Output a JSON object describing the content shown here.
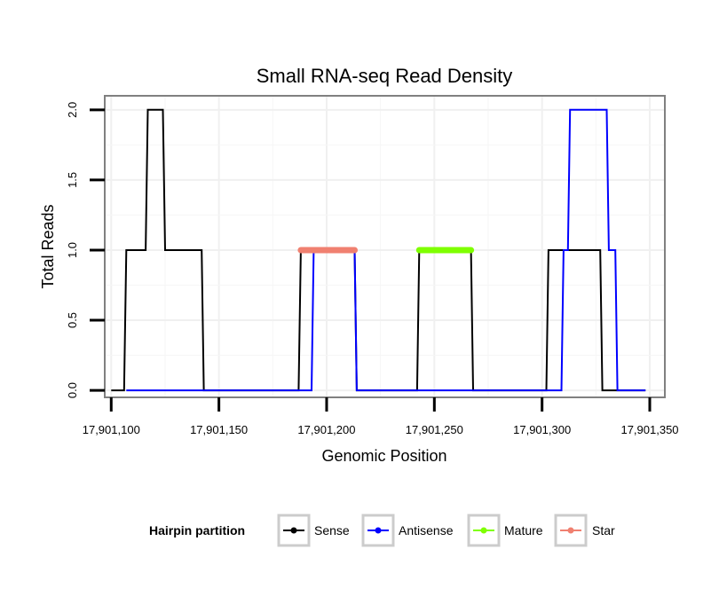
{
  "chart_data": {
    "type": "line",
    "title": "Small RNA-seq Read Density",
    "xlabel": "Genomic Position",
    "ylabel": "Total Reads",
    "xlim": [
      17901097,
      17901357
    ],
    "ylim": [
      -0.05,
      2.1
    ],
    "x_ticks": [
      17901100,
      17901150,
      17901200,
      17901250,
      17901300,
      17901350
    ],
    "x_tick_labels": [
      "17,901,100",
      "17,901,150",
      "17,901,200",
      "17,901,250",
      "17,901,300",
      "17,901,350"
    ],
    "y_ticks": [
      0,
      0.5,
      1,
      1.5,
      2
    ],
    "y_tick_labels": [
      "0.0",
      "0.5",
      "1.0",
      "1.5",
      "2.0"
    ],
    "grid": true,
    "legend": {
      "title": "Hairpin partition",
      "position": "bottom",
      "entries": [
        "Sense",
        "Antisense",
        "Mature",
        "Star"
      ]
    },
    "series": [
      {
        "name": "Sense",
        "color": "#000000",
        "kind": "density",
        "points": [
          [
            17901100,
            0
          ],
          [
            17901106,
            0
          ],
          [
            17901107,
            1
          ],
          [
            17901116,
            1
          ],
          [
            17901117,
            2
          ],
          [
            17901124,
            2
          ],
          [
            17901125,
            1
          ],
          [
            17901142,
            1
          ],
          [
            17901143,
            0
          ],
          [
            17901187,
            0
          ],
          [
            17901188,
            1
          ],
          [
            17901213,
            1
          ],
          [
            17901214,
            0
          ],
          [
            17901242,
            0
          ],
          [
            17901243,
            1
          ],
          [
            17901267,
            1
          ],
          [
            17901268,
            0
          ],
          [
            17901302,
            0
          ],
          [
            17901303,
            1
          ],
          [
            17901327,
            1
          ],
          [
            17901328,
            0
          ],
          [
            17901348,
            0
          ]
        ]
      },
      {
        "name": "Antisense",
        "color": "#0000ff",
        "kind": "density",
        "points": [
          [
            17901107,
            0
          ],
          [
            17901193,
            0
          ],
          [
            17901194,
            1
          ],
          [
            17901213,
            1
          ],
          [
            17901214,
            0
          ],
          [
            17901309,
            0
          ],
          [
            17901310,
            1
          ],
          [
            17901312,
            1
          ],
          [
            17901313,
            2
          ],
          [
            17901330,
            2
          ],
          [
            17901331,
            1
          ],
          [
            17901334,
            1
          ],
          [
            17901335,
            0
          ],
          [
            17901348,
            0
          ]
        ]
      },
      {
        "name": "Mature",
        "color": "#7fff00",
        "kind": "segment",
        "points": [
          [
            17901243,
            1
          ],
          [
            17901267,
            1
          ]
        ]
      },
      {
        "name": "Star",
        "color": "#f08070",
        "kind": "segment",
        "points": [
          [
            17901188,
            1
          ],
          [
            17901213,
            1
          ]
        ]
      }
    ]
  }
}
